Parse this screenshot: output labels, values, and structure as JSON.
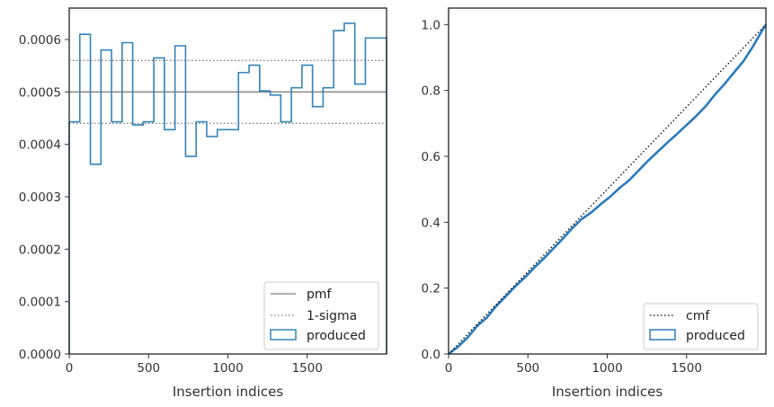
{
  "chart_data": [
    {
      "type": "histogram-step",
      "xlabel": "Insertion indices",
      "ylabel": "",
      "xlim": [
        0,
        2000
      ],
      "ylim": [
        0,
        0.00066
      ],
      "x_ticks": [
        {
          "value": 0,
          "label": "0"
        },
        {
          "value": 500,
          "label": "500"
        },
        {
          "value": 1000,
          "label": "1000"
        },
        {
          "value": 1500,
          "label": "1500"
        }
      ],
      "y_ticks": [
        {
          "value": 0,
          "label": "0.0000"
        },
        {
          "value": 0.0001,
          "label": "0.0001"
        },
        {
          "value": 0.0002,
          "label": "0.0002"
        },
        {
          "value": 0.0003,
          "label": "0.0003"
        },
        {
          "value": 0.0004,
          "label": "0.0004"
        },
        {
          "value": 0.0005,
          "label": "0.0005"
        },
        {
          "value": 0.0006,
          "label": "0.0006"
        }
      ],
      "bin_width": 66.67,
      "produced": [
        0.000443,
        0.00061,
        0.000362,
        0.00058,
        0.000443,
        0.000594,
        0.000437,
        0.000443,
        0.000565,
        0.000428,
        0.000588,
        0.000377,
        0.000443,
        0.000415,
        0.000428,
        0.000428,
        0.000537,
        0.000551,
        0.000502,
        0.000494,
        0.000443,
        0.000508,
        0.000551,
        0.000472,
        0.000508,
        0.000617,
        0.000631,
        0.000515,
        0.000603,
        0.000603
      ],
      "pmf": 0.0005,
      "sigma_lower": 0.00044,
      "sigma_upper": 0.00056,
      "legend": [
        {
          "label": "pmf",
          "style": "solid-gray"
        },
        {
          "label": "1-sigma",
          "style": "dotted-gray"
        },
        {
          "label": "produced",
          "style": "box-blue"
        }
      ],
      "legend_position": "bottom-right",
      "colors": {
        "produced": "#3584b8",
        "reference": "#808080"
      }
    },
    {
      "type": "line",
      "xlabel": "Insertion indices",
      "ylabel": "",
      "xlim": [
        0,
        2000
      ],
      "ylim": [
        0,
        1.05
      ],
      "x_ticks": [
        {
          "value": 0,
          "label": "0"
        },
        {
          "value": 500,
          "label": "500"
        },
        {
          "value": 1000,
          "label": "1000"
        },
        {
          "value": 1500,
          "label": "1500"
        }
      ],
      "y_ticks": [
        {
          "value": 0,
          "label": "0.0"
        },
        {
          "value": 0.2,
          "label": "0.2"
        },
        {
          "value": 0.4,
          "label": "0.4"
        },
        {
          "value": 0.6,
          "label": "0.6"
        },
        {
          "value": 0.8,
          "label": "0.8"
        },
        {
          "value": 1.0,
          "label": "1.0"
        }
      ],
      "cmf": {
        "x": [
          0,
          2000
        ],
        "y": [
          0,
          1.0
        ]
      },
      "produced": {
        "x": [
          0,
          60,
          120,
          180,
          240,
          300,
          360,
          420,
          480,
          540,
          600,
          660,
          720,
          780,
          840,
          900,
          960,
          1020,
          1080,
          1140,
          1200,
          1260,
          1320,
          1380,
          1440,
          1500,
          1560,
          1620,
          1680,
          1740,
          1800,
          1860,
          1920,
          1980,
          2000
        ],
        "y": [
          0,
          0.022,
          0.05,
          0.085,
          0.11,
          0.145,
          0.175,
          0.205,
          0.232,
          0.262,
          0.29,
          0.32,
          0.35,
          0.382,
          0.41,
          0.43,
          0.455,
          0.478,
          0.505,
          0.528,
          0.558,
          0.588,
          0.615,
          0.642,
          0.668,
          0.695,
          0.722,
          0.752,
          0.788,
          0.82,
          0.855,
          0.89,
          0.935,
          0.985,
          1.0
        ]
      },
      "legend": [
        {
          "label": "cmf",
          "style": "dotted-black"
        },
        {
          "label": "produced",
          "style": "box-blue"
        }
      ],
      "legend_position": "bottom-right",
      "colors": {
        "produced": "#2b7bba",
        "cmf": "#000000"
      }
    }
  ]
}
